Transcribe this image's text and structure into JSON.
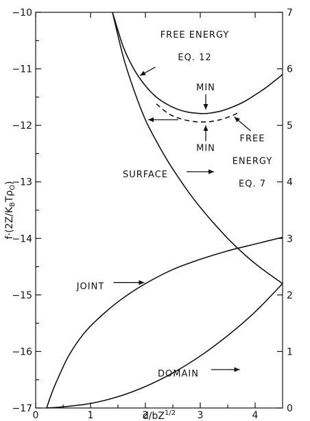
{
  "chart_data": {
    "type": "line",
    "title": "",
    "xlabel": "d/bZ¹ᐟ²",
    "xlabel_text": "d/bZ",
    "xlabel_sup": "1/2",
    "ylabel_left": "f·(2Z/K",
    "ylabel_left_parts": [
      "f·(2Z/K",
      "B",
      "Tρ",
      "O",
      ")"
    ],
    "xlim": [
      0,
      4.5
    ],
    "ylim_left": [
      -17,
      -10
    ],
    "ylim_right": [
      0,
      7
    ],
    "grid": false,
    "x_ticks": [
      "0",
      "1",
      "2",
      "3",
      "4"
    ],
    "y_ticks_left": [
      "-10",
      "-11",
      "-12",
      "-13",
      "-14",
      "-15",
      "-16",
      "-17"
    ],
    "y_ticks_right": [
      "7",
      "6",
      "5",
      "4",
      "3",
      "2",
      "1",
      "0"
    ],
    "series": [
      {
        "name": "FREE ENERGY EQ.12",
        "axis": "left",
        "style": "solid",
        "x": [
          1.4,
          1.6,
          1.8,
          2.0,
          2.2,
          2.4,
          2.6,
          2.8,
          3.0,
          3.1,
          3.2,
          3.4,
          3.6,
          3.8,
          4.0,
          4.2,
          4.5
        ],
        "y": [
          -10.0,
          -10.62,
          -11.02,
          -11.3,
          -11.5,
          -11.63,
          -11.72,
          -11.77,
          -11.79,
          -11.79,
          -11.78,
          -11.74,
          -11.67,
          -11.58,
          -11.46,
          -11.33,
          -11.1
        ]
      },
      {
        "name": "FREE ENERGY EQ.7",
        "axis": "left",
        "style": "dashed",
        "x": [
          2.2,
          2.4,
          2.6,
          2.8,
          3.0,
          3.2,
          3.4,
          3.6,
          3.7
        ],
        "y": [
          -11.62,
          -11.78,
          -11.87,
          -11.92,
          -11.94,
          -11.93,
          -11.89,
          -11.82,
          -11.77
        ]
      },
      {
        "name": "SURFACE",
        "axis": "right",
        "style": "solid",
        "x": [
          1.4,
          1.6,
          1.8,
          2.0,
          2.2,
          2.4,
          2.6,
          2.8,
          3.0,
          3.2,
          3.5,
          3.8,
          4.1,
          4.5
        ],
        "y": [
          7.0,
          6.2,
          5.6,
          5.1,
          4.72,
          4.38,
          4.08,
          3.8,
          3.55,
          3.32,
          3.0,
          2.72,
          2.48,
          2.2
        ]
      },
      {
        "name": "JOINT",
        "axis": "right",
        "style": "solid",
        "x": [
          0.2,
          0.3,
          0.45,
          0.6,
          0.8,
          1.0,
          1.3,
          1.6,
          2.0,
          2.5,
          3.0,
          3.5,
          4.0,
          4.5
        ],
        "y": [
          0.0,
          0.28,
          0.62,
          0.92,
          1.22,
          1.45,
          1.72,
          1.95,
          2.2,
          2.45,
          2.63,
          2.78,
          2.9,
          3.02
        ]
      },
      {
        "name": "DOMAIN",
        "axis": "right",
        "style": "solid",
        "x": [
          0.2,
          0.5,
          1.0,
          1.5,
          2.0,
          2.5,
          3.0,
          3.5,
          4.0,
          4.5
        ],
        "y": [
          0.0,
          0.02,
          0.08,
          0.2,
          0.38,
          0.62,
          0.92,
          1.28,
          1.7,
          2.2
        ]
      }
    ],
    "annotations": [
      {
        "text": "FREE ENERGY",
        "x": 2.9,
        "y": -10.45,
        "axis": "left"
      },
      {
        "text": "EQ. 12",
        "x": 2.9,
        "y": -10.85,
        "axis": "left"
      },
      {
        "text": "MIN",
        "x": 3.1,
        "y": -11.38,
        "axis": "left"
      },
      {
        "text": "MIN",
        "x": 3.1,
        "y": -12.45,
        "axis": "left"
      },
      {
        "text": "FREE",
        "x": 3.95,
        "y": -12.28,
        "axis": "left"
      },
      {
        "text": "ENERGY",
        "x": 3.95,
        "y": -12.68,
        "axis": "left"
      },
      {
        "text": "EQ. 7",
        "x": 3.95,
        "y": -13.08,
        "axis": "left"
      },
      {
        "text": "SURFACE",
        "x": 2.0,
        "y": -12.92,
        "axis": "left"
      },
      {
        "text": "JOINT",
        "x": 1.0,
        "y": -14.9,
        "axis": "left"
      },
      {
        "text": "DOMAIN",
        "x": 2.6,
        "y": -16.44,
        "axis": "left"
      }
    ]
  }
}
